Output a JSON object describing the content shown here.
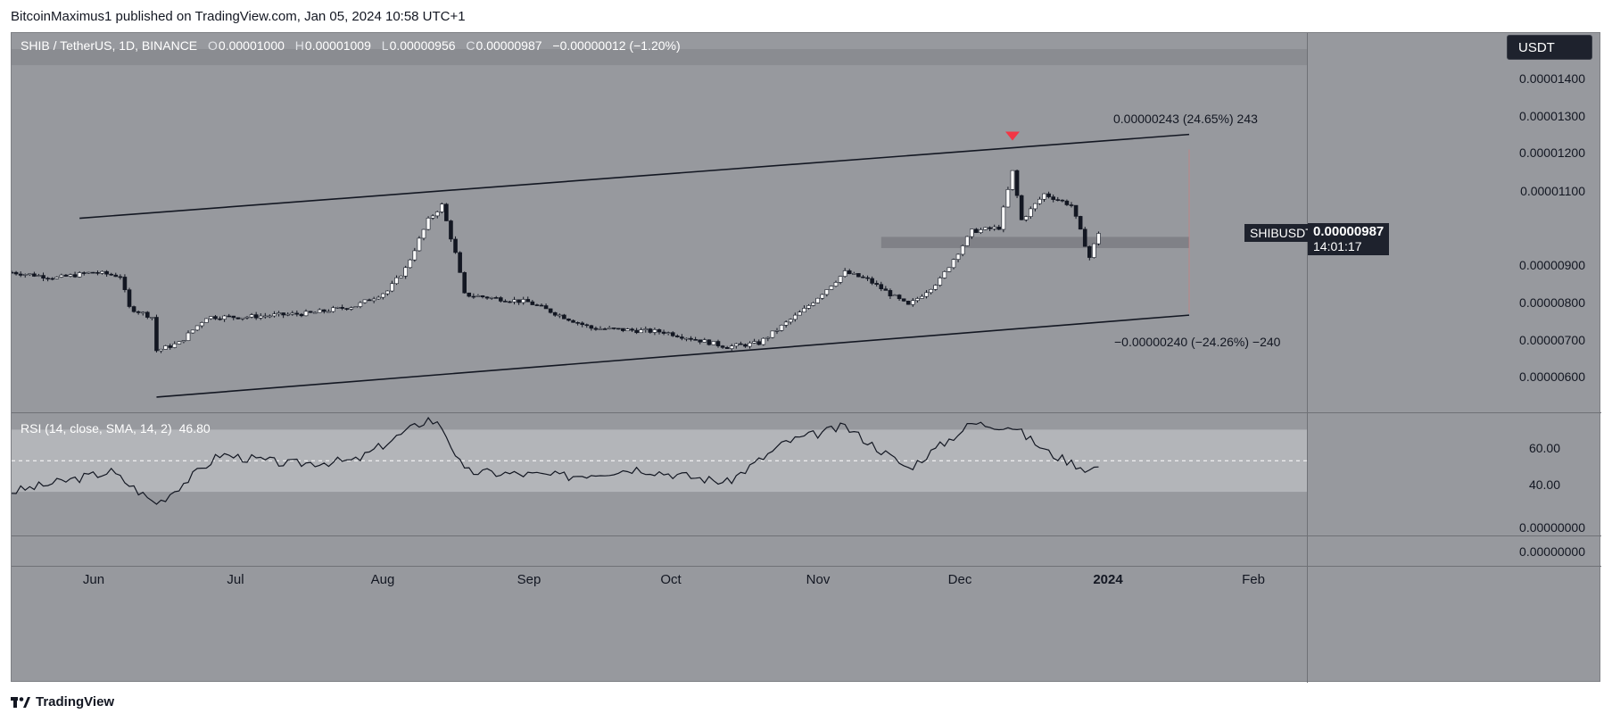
{
  "header": {
    "publisher": "BitcoinMaximus1 published on TradingView.com, Jan 05, 2024 10:58 UTC+1"
  },
  "legend": {
    "symbol": "SHIB / TetherUS, 1D, BINANCE",
    "o_key": "O",
    "o": "0.00001000",
    "h_key": "H",
    "h": "0.00001009",
    "l_key": "L",
    "l": "0.00000956",
    "c_key": "C",
    "c": "0.00000987",
    "change": "−0.00000012 (−1.20%)"
  },
  "currency_button": "USDT",
  "price_axis": {
    "labels": [
      "0.00001400",
      "0.00001300",
      "0.00001200",
      "0.00001100",
      "0.00000900",
      "0.00000800",
      "0.00000700",
      "0.00000600"
    ]
  },
  "current_price_tag": {
    "symbol": "SHIBUSDT",
    "price": "0.00000987",
    "countdown": "14:01:17"
  },
  "annotations": {
    "upper_measure": "0.00000243 (24.65%) 243",
    "lower_measure": "−0.00000240 (−24.26%) −240"
  },
  "rsi": {
    "label": "RSI (14, close, SMA, 14, 2)",
    "value": "46.80",
    "axis_labels": [
      "60.00",
      "40.00"
    ],
    "upper_band": 70,
    "lower_band": 30,
    "mid": 50
  },
  "extra_pane": {
    "labels": [
      "0.00000000",
      "0.00000000"
    ]
  },
  "time_axis": {
    "labels": [
      "Jun",
      "Jul",
      "Aug",
      "Sep",
      "Oct",
      "Nov",
      "Dec",
      "2024",
      "Feb"
    ]
  },
  "footer": {
    "brand": "TradingView"
  },
  "colors": {
    "chart_bg": "#97999e",
    "candle_up": "#ffffff",
    "candle_down": "#131722",
    "marker": "#f23645",
    "zone": "#7b7d82",
    "rsi_band": "#b3b5b9"
  },
  "chart_data": {
    "type": "candlestick",
    "title": "SHIB / TetherUS, 1D, BINANCE",
    "ylim": [
      5.4e-06,
      1.52e-05
    ],
    "x_range": [
      "2023-05-10",
      "2024-02-20"
    ],
    "close_series": [
      {
        "date": "2023-05-10",
        "close": 8.8e-06
      },
      {
        "date": "2023-05-20",
        "close": 8.65e-06
      },
      {
        "date": "2023-05-28",
        "close": 8.8e-06
      },
      {
        "date": "2023-06-03",
        "close": 8.7e-06
      },
      {
        "date": "2023-06-05",
        "close": 7.85e-06
      },
      {
        "date": "2023-06-10",
        "close": 7.6e-06
      },
      {
        "date": "2023-06-11",
        "close": 6.7e-06
      },
      {
        "date": "2023-06-16",
        "close": 6.9e-06
      },
      {
        "date": "2023-06-22",
        "close": 7.6e-06
      },
      {
        "date": "2023-06-30",
        "close": 7.6e-06
      },
      {
        "date": "2023-07-15",
        "close": 7.7e-06
      },
      {
        "date": "2023-07-25",
        "close": 7.9e-06
      },
      {
        "date": "2023-08-01",
        "close": 8.3e-06
      },
      {
        "date": "2023-08-05",
        "close": 8.9e-06
      },
      {
        "date": "2023-08-10",
        "close": 1.02e-05
      },
      {
        "date": "2023-08-13",
        "close": 1.06e-05
      },
      {
        "date": "2023-08-16",
        "close": 9.3e-06
      },
      {
        "date": "2023-08-18",
        "close": 8.2e-06
      },
      {
        "date": "2023-09-01",
        "close": 8e-06
      },
      {
        "date": "2023-09-15",
        "close": 7.3e-06
      },
      {
        "date": "2023-10-01",
        "close": 7.2e-06
      },
      {
        "date": "2023-10-15",
        "close": 6.8e-06
      },
      {
        "date": "2023-10-22",
        "close": 6.9e-06
      },
      {
        "date": "2023-11-01",
        "close": 7.8e-06
      },
      {
        "date": "2023-11-10",
        "close": 8.8e-06
      },
      {
        "date": "2023-11-15",
        "close": 8.6e-06
      },
      {
        "date": "2023-11-24",
        "close": 7.9e-06
      },
      {
        "date": "2023-12-01",
        "close": 8.6e-06
      },
      {
        "date": "2023-12-08",
        "close": 9.9e-06
      },
      {
        "date": "2023-12-14",
        "close": 1e-05
      },
      {
        "date": "2023-12-17",
        "close": 1.15e-05
      },
      {
        "date": "2023-12-19",
        "close": 1.02e-05
      },
      {
        "date": "2023-12-24",
        "close": 1.09e-05
      },
      {
        "date": "2023-12-30",
        "close": 1.06e-05
      },
      {
        "date": "2024-01-03",
        "close": 9.2e-06
      },
      {
        "date": "2024-01-05",
        "close": 9.87e-06
      }
    ],
    "swing_high": {
      "date": "2023-12-17",
      "high": 1.2e-05
    },
    "channel": {
      "upper": [
        {
          "date": "2023-05-25",
          "price": 1.025e-05
        },
        {
          "date": "2024-01-25",
          "price": 1.25e-05
        }
      ],
      "lower": [
        {
          "date": "2023-06-11",
          "price": 5.45e-06
        },
        {
          "date": "2024-01-25",
          "price": 7.65e-06
        }
      ]
    },
    "horizontal_zone": [
      9.45e-06,
      9.75e-06
    ],
    "rsi_series": [
      {
        "date": "2023-05-10",
        "rsi": 30
      },
      {
        "date": "2023-06-01",
        "rsi": 43
      },
      {
        "date": "2023-06-11",
        "rsi": 22
      },
      {
        "date": "2023-06-25",
        "rsi": 54
      },
      {
        "date": "2023-07-10",
        "rsi": 48
      },
      {
        "date": "2023-07-25",
        "rsi": 50
      },
      {
        "date": "2023-08-10",
        "rsi": 77
      },
      {
        "date": "2023-08-13",
        "rsi": 72
      },
      {
        "date": "2023-08-18",
        "rsi": 43
      },
      {
        "date": "2023-09-10",
        "rsi": 40
      },
      {
        "date": "2023-09-25",
        "rsi": 45
      },
      {
        "date": "2023-10-15",
        "rsi": 36
      },
      {
        "date": "2023-10-28",
        "rsi": 62
      },
      {
        "date": "2023-11-10",
        "rsi": 72
      },
      {
        "date": "2023-11-24",
        "rsi": 45
      },
      {
        "date": "2023-12-08",
        "rsi": 74
      },
      {
        "date": "2023-12-17",
        "rsi": 72
      },
      {
        "date": "2023-12-25",
        "rsi": 55
      },
      {
        "date": "2024-01-03",
        "rsi": 44
      },
      {
        "date": "2024-01-05",
        "rsi": 46.8
      }
    ],
    "rsi_ylim": [
      22,
      80
    ]
  }
}
